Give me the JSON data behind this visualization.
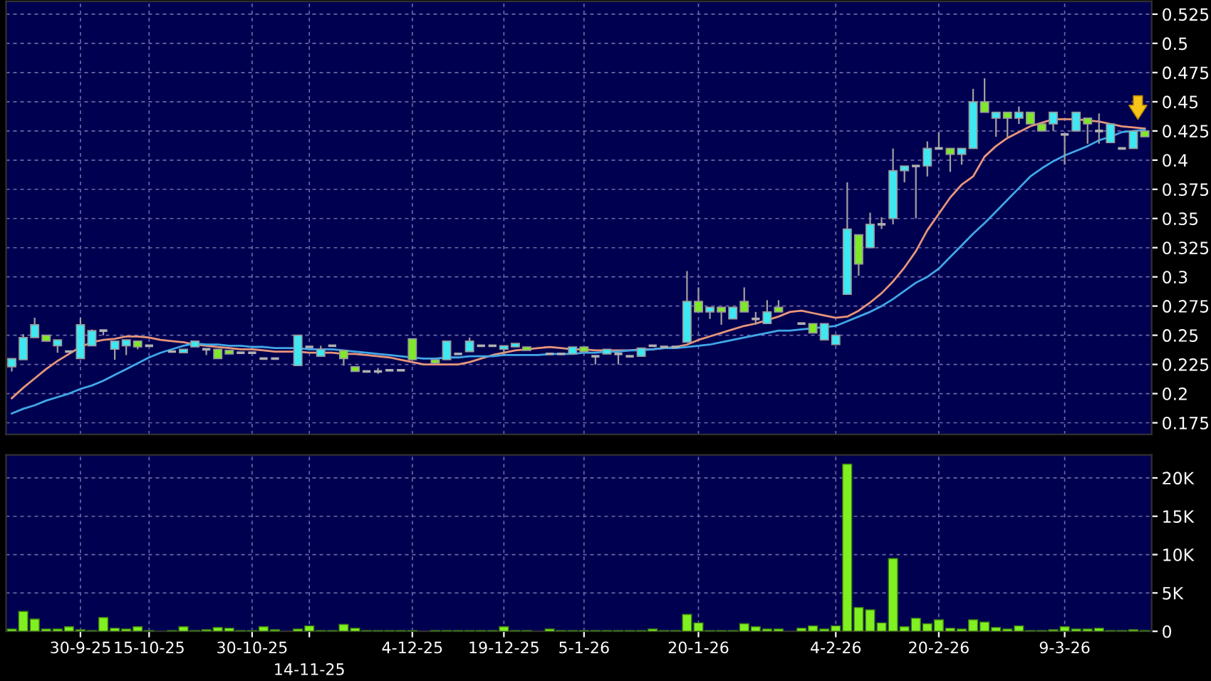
{
  "chart_data": [
    {
      "type": "candlestick",
      "categories": [
        null,
        null,
        null,
        null,
        null,
        null,
        null,
        null,
        null,
        null,
        null,
        null,
        null,
        null,
        null,
        null,
        null,
        null,
        null,
        null,
        null,
        null,
        null,
        null,
        null,
        null,
        null,
        null,
        null,
        null,
        null,
        null,
        null,
        null,
        null,
        null,
        null,
        null,
        null,
        null,
        null,
        null,
        null,
        null,
        null,
        null,
        null,
        null,
        null,
        null,
        null,
        null,
        null,
        null,
        null,
        null,
        null,
        null,
        null,
        null,
        null,
        null,
        null,
        null,
        null,
        null,
        null,
        null,
        null,
        null,
        null,
        null,
        null,
        null,
        null,
        null,
        null,
        null,
        null,
        null,
        null,
        null,
        null,
        null,
        null,
        null,
        null,
        null,
        null,
        null,
        null,
        null,
        null,
        null,
        null,
        null,
        null,
        null,
        null,
        null
      ],
      "ohlc": [
        [
          0.223,
          0.23,
          0.219,
          0.23
        ],
        [
          0.229,
          0.251,
          0.229,
          0.248
        ],
        [
          0.248,
          0.265,
          0.248,
          0.259
        ],
        [
          0.25,
          0.25,
          0.245,
          0.245
        ],
        [
          0.241,
          0.246,
          0.235,
          0.246
        ],
        [
          0.236,
          0.236,
          0.236,
          0.236
        ],
        [
          0.23,
          0.265,
          0.23,
          0.259
        ],
        [
          0.241,
          0.255,
          0.241,
          0.254
        ],
        [
          0.254,
          0.254,
          0.25,
          0.254
        ],
        [
          0.238,
          0.245,
          0.229,
          0.245
        ],
        [
          0.241,
          0.246,
          0.233,
          0.246
        ],
        [
          0.245,
          0.245,
          0.238,
          0.24
        ],
        [
          0.241,
          0.241,
          0.241,
          0.241
        ],
        null,
        [
          0.236,
          0.236,
          0.236,
          0.236
        ],
        [
          0.235,
          0.238,
          0.235,
          0.238
        ],
        [
          0.24,
          0.245,
          0.24,
          0.245
        ],
        [
          0.238,
          0.238,
          0.233,
          0.238
        ],
        [
          0.238,
          0.238,
          0.23,
          0.23
        ],
        [
          0.237,
          0.237,
          0.234,
          0.234
        ],
        [
          0.235,
          0.235,
          0.235,
          0.235
        ],
        [
          0.235,
          0.235,
          0.235,
          0.235
        ],
        [
          0.23,
          0.23,
          0.23,
          0.23
        ],
        [
          0.23,
          0.23,
          0.23,
          0.23
        ],
        null,
        [
          0.224,
          0.25,
          0.224,
          0.25
        ],
        [
          0.24,
          0.24,
          0.24,
          0.24
        ],
        [
          0.232,
          0.241,
          0.232,
          0.238
        ],
        [
          0.241,
          0.241,
          0.241,
          0.241
        ],
        [
          0.237,
          0.237,
          0.224,
          0.23
        ],
        [
          0.223,
          0.223,
          0.219,
          0.219
        ],
        [
          0.219,
          0.219,
          0.219,
          0.219
        ],
        [
          0.219,
          0.222,
          0.217,
          0.219
        ],
        [
          0.22,
          0.22,
          0.22,
          0.22
        ],
        [
          0.22,
          0.22,
          0.22,
          0.22
        ],
        [
          0.247,
          0.247,
          0.229,
          0.229
        ],
        null,
        [
          0.229,
          0.229,
          0.226,
          0.226
        ],
        [
          0.229,
          0.245,
          0.229,
          0.245
        ],
        [
          0.234,
          0.234,
          0.234,
          0.234
        ],
        [
          0.236,
          0.248,
          0.236,
          0.245
        ],
        [
          0.241,
          0.241,
          0.241,
          0.241
        ],
        [
          0.241,
          0.241,
          0.241,
          0.241
        ],
        [
          0.238,
          0.241,
          0.233,
          0.241
        ],
        [
          0.24,
          0.243,
          0.24,
          0.243
        ],
        [
          0.24,
          0.24,
          0.237,
          0.237
        ],
        null,
        [
          0.234,
          0.234,
          0.234,
          0.234
        ],
        [
          0.234,
          0.234,
          0.234,
          0.234
        ],
        [
          0.234,
          0.24,
          0.234,
          0.24
        ],
        [
          0.24,
          0.24,
          0.236,
          0.236
        ],
        [
          0.232,
          0.232,
          0.225,
          0.232
        ],
        [
          0.234,
          0.238,
          0.234,
          0.238
        ],
        [
          0.234,
          0.234,
          0.225,
          0.234
        ],
        [
          0.232,
          0.232,
          0.232,
          0.232
        ],
        [
          0.232,
          0.239,
          0.232,
          0.239
        ],
        [
          0.241,
          0.241,
          0.241,
          0.241
        ],
        [
          0.24,
          0.24,
          0.24,
          0.24
        ],
        [
          0.24,
          0.24,
          0.24,
          0.24
        ],
        [
          0.244,
          0.305,
          0.244,
          0.279
        ],
        [
          0.279,
          0.291,
          0.27,
          0.27
        ],
        [
          0.27,
          0.274,
          0.264,
          0.274
        ],
        [
          0.274,
          0.274,
          0.259,
          0.27
        ],
        [
          0.264,
          0.274,
          0.264,
          0.274
        ],
        [
          0.279,
          0.291,
          0.27,
          0.27
        ],
        [
          0.264,
          0.27,
          0.259,
          0.264
        ],
        [
          0.26,
          0.28,
          0.26,
          0.27
        ],
        [
          0.274,
          0.28,
          0.27,
          0.27
        ],
        null,
        [
          0.26,
          0.26,
          0.26,
          0.26
        ],
        [
          0.26,
          0.26,
          0.252,
          0.252
        ],
        [
          0.246,
          0.26,
          0.246,
          0.26
        ],
        [
          0.242,
          0.25,
          0.242,
          0.25
        ],
        [
          0.285,
          0.381,
          0.285,
          0.341
        ],
        [
          0.336,
          0.336,
          0.301,
          0.311
        ],
        [
          0.325,
          0.355,
          0.325,
          0.345
        ],
        [
          0.345,
          0.351,
          0.341,
          0.345
        ],
        [
          0.35,
          0.41,
          0.345,
          0.391
        ],
        [
          0.391,
          0.395,
          0.381,
          0.395
        ],
        [
          0.395,
          0.395,
          0.35,
          0.395
        ],
        [
          0.395,
          0.416,
          0.386,
          0.41
        ],
        [
          0.41,
          0.424,
          0.41,
          0.41
        ],
        [
          0.41,
          0.41,
          0.39,
          0.405
        ],
        [
          0.405,
          0.41,
          0.396,
          0.41
        ],
        [
          0.41,
          0.461,
          0.41,
          0.45
        ],
        [
          0.45,
          0.47,
          0.441,
          0.441
        ],
        [
          0.436,
          0.441,
          0.42,
          0.441
        ],
        [
          0.441,
          0.441,
          0.42,
          0.436
        ],
        [
          0.436,
          0.446,
          0.431,
          0.441
        ],
        [
          0.441,
          0.441,
          0.431,
          0.431
        ],
        [
          0.431,
          0.431,
          0.425,
          0.425
        ],
        [
          0.431,
          0.441,
          0.425,
          0.441
        ],
        [
          0.422,
          0.422,
          0.396,
          0.422
        ],
        [
          0.425,
          0.441,
          0.425,
          0.441
        ],
        [
          0.436,
          0.436,
          0.414,
          0.431
        ],
        [
          0.425,
          0.44,
          0.414,
          0.425
        ],
        [
          0.415,
          0.431,
          0.415,
          0.431
        ],
        [
          0.41,
          0.41,
          0.41,
          0.41
        ],
        [
          0.41,
          0.425,
          0.41,
          0.425
        ],
        [
          0.425,
          0.425,
          0.42,
          0.42
        ]
      ],
      "colors": [
        "#3ee8f2",
        "#3ee8f2",
        "#3ee8f2",
        "#80e82a",
        "#3ee8f2",
        "#b0b0b0",
        "#3ee8f2",
        "#3ee8f2",
        "#b0b0b0",
        "#3ee8f2",
        "#3ee8f2",
        "#80e82a",
        "#b0b0b0",
        null,
        "#b0b0b0",
        "#3ee8f2",
        "#3ee8f2",
        "#b0b0b0",
        "#80e82a",
        "#80e82a",
        "#b0b0b0",
        "#b0b0b0",
        "#b0b0b0",
        "#b0b0b0",
        null,
        "#3ee8f2",
        "#b0b0b0",
        "#3ee8f2",
        "#b0b0b0",
        "#80e82a",
        "#80e82a",
        "#b0b0b0",
        "#b0b0b0",
        "#b0b0b0",
        "#b0b0b0",
        "#80e82a",
        null,
        "#80e82a",
        "#3ee8f2",
        "#b0b0b0",
        "#3ee8f2",
        "#b0b0b0",
        "#b0b0b0",
        "#3ee8f2",
        "#3ee8f2",
        "#80e82a",
        null,
        "#b0b0b0",
        "#b0b0b0",
        "#3ee8f2",
        "#80e82a",
        "#b0b0b0",
        "#3ee8f2",
        "#b0b0b0",
        "#b0b0b0",
        "#3ee8f2",
        "#b0b0b0",
        "#b0b0b0",
        "#b0b0b0",
        "#3ee8f2",
        "#80e82a",
        "#3ee8f2",
        "#80e82a",
        "#3ee8f2",
        "#80e82a",
        "#b0b0b0",
        "#3ee8f2",
        "#80e82a",
        null,
        "#b0b0b0",
        "#80e82a",
        "#3ee8f2",
        "#3ee8f2",
        "#3ee8f2",
        "#80e82a",
        "#3ee8f2",
        "#b0b0b0",
        "#3ee8f2",
        "#3ee8f2",
        "#b0b0b0",
        "#3ee8f2",
        "#b0b0b0",
        "#80e82a",
        "#3ee8f2",
        "#3ee8f2",
        "#80e82a",
        "#3ee8f2",
        "#80e82a",
        "#3ee8f2",
        "#80e82a",
        "#80e82a",
        "#3ee8f2",
        "#b0b0b0",
        "#3ee8f2",
        "#80e82a",
        "#b0b0b0",
        "#3ee8f2",
        "#b0b0b0",
        "#3ee8f2",
        "#80e82a"
      ],
      "series": [
        {
          "type": "line",
          "color": "#e8967a",
          "values": [
            0.196,
            0.205,
            0.213,
            0.221,
            0.228,
            0.234,
            0.24,
            0.244,
            0.246,
            0.247,
            0.249,
            0.249,
            0.248,
            0.246,
            0.245,
            0.244,
            0.242,
            0.241,
            0.24,
            0.239,
            0.238,
            0.238,
            0.237,
            0.236,
            0.236,
            0.236,
            0.235,
            0.235,
            0.235,
            0.234,
            0.234,
            0.233,
            0.232,
            0.231,
            0.229,
            0.227,
            0.225,
            0.225,
            0.225,
            0.225,
            0.227,
            0.23,
            0.233,
            0.235,
            0.237,
            0.238,
            0.239,
            0.24,
            0.239,
            0.238,
            0.238,
            0.237,
            0.237,
            0.237,
            0.237,
            0.238,
            0.238,
            0.239,
            0.24,
            0.242,
            0.246,
            0.249,
            0.252,
            0.255,
            0.258,
            0.26,
            0.263,
            0.266,
            0.27,
            0.271,
            0.269,
            0.267,
            0.265,
            0.266,
            0.271,
            0.278,
            0.286,
            0.296,
            0.308,
            0.322,
            0.34,
            0.354,
            0.368,
            0.379,
            0.386,
            0.403,
            0.412,
            0.419,
            0.424,
            0.429,
            0.432,
            0.435,
            0.435,
            0.435,
            0.434,
            0.433,
            0.431,
            0.429,
            0.428,
            0.427
          ]
        },
        {
          "type": "line",
          "color": "#40a8e8",
          "values": [
            0.183,
            0.187,
            0.19,
            0.194,
            0.197,
            0.2,
            0.204,
            0.207,
            0.211,
            0.216,
            0.221,
            0.226,
            0.231,
            0.235,
            0.238,
            0.241,
            0.243,
            0.242,
            0.242,
            0.241,
            0.241,
            0.24,
            0.24,
            0.239,
            0.239,
            0.239,
            0.238,
            0.238,
            0.238,
            0.237,
            0.236,
            0.235,
            0.234,
            0.233,
            0.232,
            0.231,
            0.23,
            0.23,
            0.231,
            0.231,
            0.232,
            0.232,
            0.232,
            0.233,
            0.233,
            0.233,
            0.233,
            0.234,
            0.234,
            0.234,
            0.235,
            0.235,
            0.236,
            0.236,
            0.237,
            0.237,
            0.238,
            0.239,
            0.239,
            0.24,
            0.241,
            0.242,
            0.244,
            0.246,
            0.248,
            0.25,
            0.252,
            0.254,
            0.254,
            0.255,
            0.256,
            0.257,
            0.258,
            0.262,
            0.266,
            0.27,
            0.275,
            0.281,
            0.288,
            0.295,
            0.3,
            0.307,
            0.317,
            0.327,
            0.337,
            0.346,
            0.356,
            0.366,
            0.376,
            0.386,
            0.393,
            0.399,
            0.404,
            0.408,
            0.412,
            0.417,
            0.42,
            0.424,
            0.425,
            0.426
          ]
        }
      ],
      "ylim": [
        0.165,
        0.536
      ],
      "yticks": [
        0.175,
        0.2,
        0.225,
        0.25,
        0.275,
        0.3,
        0.325,
        0.35,
        0.375,
        0.4,
        0.425,
        0.45,
        0.475,
        0.5,
        0.525
      ],
      "grid": true
    },
    {
      "type": "bar",
      "categories": [
        null,
        null,
        null,
        null,
        null,
        null,
        "30-9-25",
        null,
        null,
        null,
        null,
        null,
        "15-10-25",
        null,
        null,
        null,
        null,
        null,
        null,
        null,
        null,
        "30-10-25",
        null,
        null,
        null,
        null,
        "14-11-25",
        null,
        null,
        null,
        null,
        null,
        null,
        null,
        null,
        "4-12-25",
        null,
        null,
        null,
        null,
        null,
        null,
        null,
        "19-12-25",
        null,
        null,
        null,
        null,
        null,
        null,
        "5-1-26",
        null,
        null,
        null,
        null,
        null,
        null,
        null,
        null,
        null,
        "20-1-26",
        null,
        null,
        null,
        null,
        null,
        null,
        null,
        null,
        null,
        null,
        null,
        "4-2-26",
        null,
        null,
        null,
        null,
        null,
        null,
        null,
        null,
        "20-2-26",
        null,
        null,
        null,
        null,
        null,
        null,
        null,
        null,
        null,
        null,
        "9-3-26",
        null,
        null,
        null,
        null,
        null,
        null,
        null
      ],
      "values": [
        300,
        2600,
        1600,
        300,
        300,
        600,
        200,
        100,
        1800,
        400,
        300,
        600,
        100,
        null,
        100,
        600,
        100,
        200,
        500,
        400,
        100,
        100,
        600,
        200,
        null,
        300,
        700,
        100,
        100,
        900,
        400,
        100,
        100,
        100,
        100,
        100,
        null,
        100,
        100,
        100,
        100,
        100,
        100,
        600,
        100,
        100,
        null,
        300,
        100,
        100,
        100,
        100,
        100,
        100,
        100,
        100,
        300,
        100,
        100,
        2200,
        1100,
        100,
        100,
        100,
        1000,
        600,
        300,
        300,
        null,
        400,
        700,
        300,
        700,
        21800,
        3100,
        2800,
        1100,
        9500,
        600,
        1700,
        1000,
        1500,
        400,
        300,
        1500,
        1200,
        500,
        300,
        700,
        100,
        100,
        200,
        600,
        300,
        300,
        400,
        100,
        100,
        200,
        100
      ],
      "color": "#80f020",
      "ylim": [
        0,
        23000
      ],
      "yticks": [
        0,
        {
          "value": 5000,
          "label": "5K"
        },
        {
          "value": 10000,
          "label": "10K"
        },
        {
          "value": 15000,
          "label": "15K"
        },
        {
          "value": 20000,
          "label": "20K"
        }
      ],
      "grid": true
    }
  ]
}
